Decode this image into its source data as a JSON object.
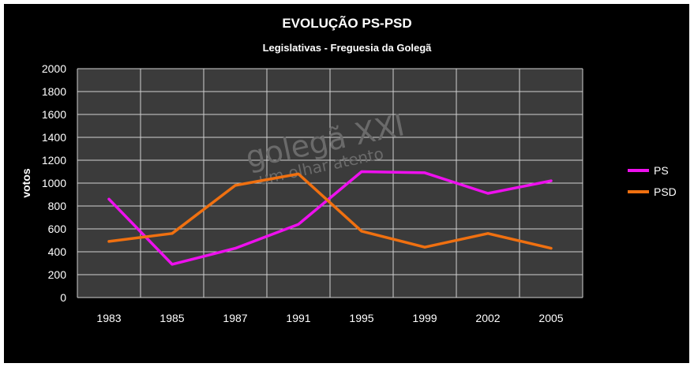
{
  "chart_data": {
    "type": "line",
    "title": "EVOLUÇÃO PS-PSD",
    "subtitle": "Legislativas - Freguesia da Golegã",
    "xlabel": "",
    "ylabel": "votos",
    "categories": [
      "1983",
      "1985",
      "1987",
      "1991",
      "1995",
      "1999",
      "2002",
      "2005"
    ],
    "ylim": [
      0,
      2000
    ],
    "yticks": [
      0,
      200,
      400,
      600,
      800,
      1000,
      1200,
      1400,
      1600,
      1800,
      2000
    ],
    "grid": true,
    "legend": "right",
    "series": [
      {
        "name": "PS",
        "color": "#ee10ee",
        "values": [
          860,
          290,
          430,
          640,
          1100,
          1090,
          910,
          1020
        ]
      },
      {
        "name": "PSD",
        "color": "#f07010",
        "values": [
          490,
          560,
          980,
          1080,
          580,
          440,
          560,
          430
        ]
      }
    ],
    "watermark": {
      "line1": "golegã XXI",
      "line2": "um olhar atento"
    },
    "colors": {
      "background": "#000000",
      "plot_area": "#3b3b3b",
      "grid": "#d0d0d0",
      "text": "#ffffff"
    }
  }
}
